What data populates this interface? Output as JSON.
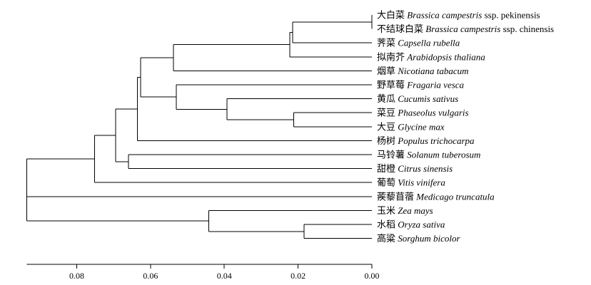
{
  "axis": {
    "direction": "reversed",
    "min": 0.0,
    "max": 0.093,
    "ticks": [
      {
        "value": 0.08,
        "label": "0.08"
      },
      {
        "value": 0.06,
        "label": "0.06"
      },
      {
        "value": 0.04,
        "label": "0.04"
      },
      {
        "value": 0.02,
        "label": "0.02"
      },
      {
        "value": 0.0,
        "label": "0.00"
      }
    ]
  },
  "leaves": [
    {
      "id": "L1",
      "cn": "大白菜",
      "sci": "Brassica campestris",
      "sub": "ssp. pekinensis"
    },
    {
      "id": "L2",
      "cn": "不结球白菜",
      "sci": "Brassica campestris",
      "sub": "ssp. chinensis"
    },
    {
      "id": "L3",
      "cn": "荠菜",
      "sci": "Capsella rubella",
      "sub": ""
    },
    {
      "id": "L4",
      "cn": "拟南芥",
      "sci": "Arabidopsis thaliana",
      "sub": ""
    },
    {
      "id": "L5",
      "cn": "烟草",
      "sci": "Nicotiana tabacum",
      "sub": ""
    },
    {
      "id": "L6",
      "cn": "野草莓",
      "sci": "Fragaria vesca",
      "sub": ""
    },
    {
      "id": "L7",
      "cn": "黄瓜",
      "sci": "Cucumis sativus",
      "sub": ""
    },
    {
      "id": "L8",
      "cn": "菜豆",
      "sci": "Phaseolus vulgaris",
      "sub": ""
    },
    {
      "id": "L9",
      "cn": "大豆",
      "sci": "Glycine max",
      "sub": ""
    },
    {
      "id": "L10",
      "cn": "杨树",
      "sci": "Populus trichocarpa",
      "sub": ""
    },
    {
      "id": "L11",
      "cn": "马铃薯",
      "sci": "Solanum tuberosum",
      "sub": ""
    },
    {
      "id": "L12",
      "cn": "甜橙",
      "sci": "Citrus sinensis",
      "sub": ""
    },
    {
      "id": "L13",
      "cn": "葡萄",
      "sci": "Vitis vinifera",
      "sub": ""
    },
    {
      "id": "L14",
      "cn": "蒺藜苜蓿",
      "sci": "Medicago truncatula",
      "sub": ""
    },
    {
      "id": "L15",
      "cn": "玉米",
      "sci": "Zea mays",
      "sub": ""
    },
    {
      "id": "L16",
      "cn": "水稻",
      "sci": "Oryza sativa",
      "sub": ""
    },
    {
      "id": "L17",
      "cn": "高粱",
      "sci": "Sorghum bicolor",
      "sub": ""
    }
  ],
  "nodes": [
    {
      "id": "N1",
      "height": 0.0,
      "children": [
        "L1",
        "L2"
      ]
    },
    {
      "id": "N2",
      "height": 0.0215,
      "children": [
        "N1",
        "L3"
      ]
    },
    {
      "id": "N3",
      "height": 0.0222,
      "children": [
        "N2",
        "L4"
      ]
    },
    {
      "id": "N4",
      "height": 0.0538,
      "children": [
        "N3",
        "L5"
      ]
    },
    {
      "id": "N5",
      "height": 0.0212,
      "children": [
        "L8",
        "L9"
      ]
    },
    {
      "id": "N6",
      "height": 0.0393,
      "children": [
        "L7",
        "N5"
      ]
    },
    {
      "id": "N7",
      "height": 0.053,
      "children": [
        "L6",
        "N6"
      ]
    },
    {
      "id": "N8",
      "height": 0.0627,
      "children": [
        "N4",
        "N7"
      ]
    },
    {
      "id": "N9",
      "height": 0.0636,
      "children": [
        "N8",
        "L10"
      ]
    },
    {
      "id": "N10",
      "height": 0.066,
      "children": [
        "L11",
        "L12"
      ]
    },
    {
      "id": "N11",
      "height": 0.0695,
      "children": [
        "N9",
        "N10"
      ]
    },
    {
      "id": "N12",
      "height": 0.0752,
      "children": [
        "N11",
        "L13"
      ]
    },
    {
      "id": "N13",
      "height": 0.0184,
      "children": [
        "L16",
        "L17"
      ]
    },
    {
      "id": "N14",
      "height": 0.0442,
      "children": [
        "L15",
        "N13"
      ]
    },
    {
      "id": "N15",
      "height": 0.0935,
      "children": [
        "N12",
        "L14",
        "N14"
      ]
    }
  ],
  "root": "N15"
}
